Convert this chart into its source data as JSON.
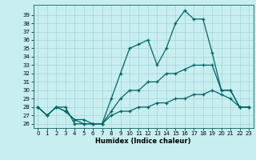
{
  "xlabel": "Humidex (Indice chaleur)",
  "background_color": "#c8eef0",
  "line_color": "#006666",
  "ylim": [
    25.5,
    40.2
  ],
  "xlim": [
    -0.5,
    23.5
  ],
  "yticks": [
    26,
    27,
    28,
    29,
    30,
    31,
    32,
    33,
    34,
    35,
    36,
    37,
    38,
    39
  ],
  "xticks": [
    0,
    1,
    2,
    3,
    4,
    5,
    6,
    7,
    8,
    9,
    10,
    11,
    12,
    13,
    14,
    15,
    16,
    17,
    18,
    19,
    20,
    21,
    22,
    23
  ],
  "line1_x": [
    0,
    1,
    2,
    3,
    4,
    5,
    6,
    7,
    8,
    9,
    10,
    11,
    12,
    13,
    14,
    15,
    16,
    17,
    18,
    19,
    20,
    21,
    22,
    23
  ],
  "line1_y": [
    28,
    27,
    28,
    28,
    26,
    26,
    26,
    26,
    29,
    32,
    35,
    35.5,
    36,
    33,
    35,
    38,
    39.5,
    38.5,
    38.5,
    34.5,
    30,
    30,
    28,
    28
  ],
  "line2_x": [
    0,
    1,
    2,
    3,
    4,
    5,
    6,
    7,
    8,
    9,
    10,
    11,
    12,
    13,
    14,
    15,
    16,
    17,
    18,
    19,
    20,
    21,
    22,
    23
  ],
  "line2_y": [
    28,
    27,
    28,
    27.5,
    26.5,
    26.5,
    26,
    26,
    27.5,
    29,
    30,
    30,
    31,
    31,
    32,
    32,
    32.5,
    33,
    33,
    33,
    30,
    30,
    28,
    28
  ],
  "line3_x": [
    0,
    1,
    2,
    3,
    4,
    5,
    6,
    7,
    8,
    9,
    10,
    11,
    12,
    13,
    14,
    15,
    16,
    17,
    18,
    19,
    20,
    21,
    22,
    23
  ],
  "line3_y": [
    28,
    27,
    28,
    27.5,
    26.5,
    26,
    26,
    26,
    27,
    27.5,
    27.5,
    28,
    28,
    28.5,
    28.5,
    29,
    29,
    29.5,
    29.5,
    30,
    29.5,
    29,
    28,
    28
  ]
}
